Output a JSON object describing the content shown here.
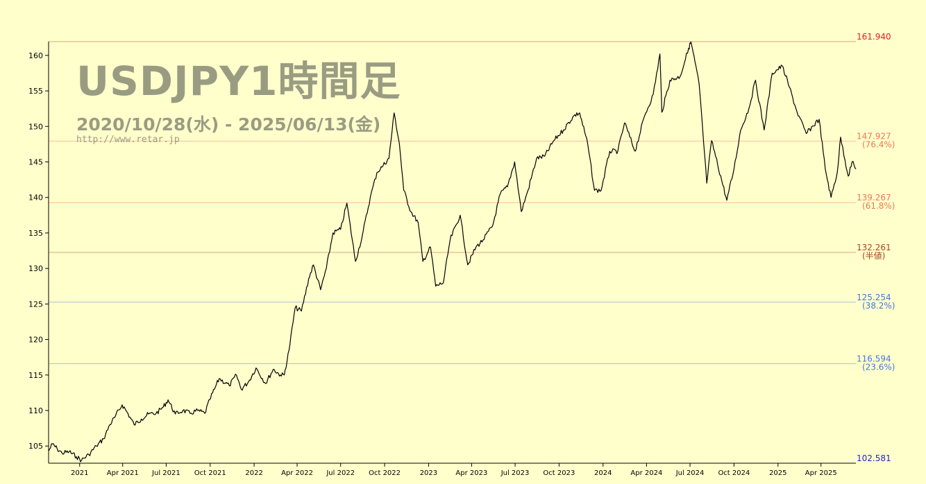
{
  "chart_data": {
    "type": "line",
    "title": "USDJPY1時間足",
    "subtitle": "2020/10/28(水) - 2025/06/13(金)",
    "watermark": "http://www.retar.jp",
    "ylim": [
      102.581,
      161.94
    ],
    "y_ticks": [
      105,
      110,
      115,
      120,
      125,
      130,
      135,
      140,
      145,
      150,
      155,
      160
    ],
    "x_tick_labels": [
      "2021",
      "Apr 2021",
      "Jul 2021",
      "Oct 2021",
      "2022",
      "Apr 2022",
      "Jul 2022",
      "Oct 2022",
      "2023",
      "Apr 2023",
      "Jul 2023",
      "Oct 2023",
      "2024",
      "Apr 2024",
      "Jul 2024",
      "Oct 2024",
      "2025",
      "Apr 2025"
    ],
    "x_tick_dates": [
      "2021-01-01",
      "2021-04-01",
      "2021-07-01",
      "2021-10-01",
      "2022-01-01",
      "2022-04-01",
      "2022-07-01",
      "2022-10-01",
      "2023-01-01",
      "2023-04-01",
      "2023-07-01",
      "2023-10-01",
      "2024-01-01",
      "2024-04-01",
      "2024-07-01",
      "2024-10-01",
      "2025-01-01",
      "2025-04-01"
    ],
    "x_range": [
      "2020-10-28",
      "2025-06-13"
    ],
    "fib_levels": [
      {
        "price": "161.940",
        "label": "",
        "color": "#e02020"
      },
      {
        "price": "147.927",
        "label": "(76.4%)",
        "color": "#ee7755"
      },
      {
        "price": "139.267",
        "label": "(61.8%)",
        "color": "#ee7755"
      },
      {
        "price": "132.261",
        "label": "(半値)",
        "color": "#aa4422"
      },
      {
        "price": "125.254",
        "label": "(38.2%)",
        "color": "#4477dd"
      },
      {
        "price": "116.594",
        "label": "(23.6%)",
        "color": "#4477dd"
      },
      {
        "price": "102.581",
        "label": "",
        "color": "#2222cc"
      }
    ],
    "series": [
      {
        "values": [
          [
            "2020-10-28",
            104.3
          ],
          [
            "2020-11-05",
            105.3
          ],
          [
            "2020-11-15",
            104.6
          ],
          [
            "2020-11-25",
            104.0
          ],
          [
            "2020-12-10",
            104.2
          ],
          [
            "2020-12-25",
            103.5
          ],
          [
            "2021-01-05",
            103.0
          ],
          [
            "2021-01-20",
            103.8
          ],
          [
            "2021-02-05",
            105.0
          ],
          [
            "2021-02-20",
            106.0
          ],
          [
            "2021-03-05",
            108.0
          ],
          [
            "2021-03-15",
            109.0
          ],
          [
            "2021-03-31",
            110.8
          ],
          [
            "2021-04-10",
            109.8
          ],
          [
            "2021-04-25",
            108.0
          ],
          [
            "2021-05-10",
            108.8
          ],
          [
            "2021-05-25",
            109.5
          ],
          [
            "2021-06-10",
            109.6
          ],
          [
            "2021-06-25",
            110.5
          ],
          [
            "2021-07-05",
            111.5
          ],
          [
            "2021-07-20",
            109.5
          ],
          [
            "2021-08-05",
            110.0
          ],
          [
            "2021-08-20",
            109.6
          ],
          [
            "2021-09-05",
            110.0
          ],
          [
            "2021-09-20",
            109.6
          ],
          [
            "2021-09-30",
            111.5
          ],
          [
            "2021-10-10",
            113.0
          ],
          [
            "2021-10-20",
            114.5
          ],
          [
            "2021-11-10",
            113.5
          ],
          [
            "2021-11-25",
            115.0
          ],
          [
            "2021-12-05",
            113.0
          ],
          [
            "2021-12-20",
            114.0
          ],
          [
            "2022-01-05",
            116.0
          ],
          [
            "2022-01-25",
            113.8
          ],
          [
            "2022-02-10",
            115.8
          ],
          [
            "2022-02-25",
            115.0
          ],
          [
            "2022-03-05",
            115.0
          ],
          [
            "2022-03-15",
            118.5
          ],
          [
            "2022-03-28",
            124.5
          ],
          [
            "2022-04-10",
            124.0
          ],
          [
            "2022-04-25",
            128.5
          ],
          [
            "2022-05-05",
            130.5
          ],
          [
            "2022-05-20",
            127.0
          ],
          [
            "2022-06-01",
            130.0
          ],
          [
            "2022-06-15",
            135.0
          ],
          [
            "2022-07-01",
            135.5
          ],
          [
            "2022-07-14",
            139.2
          ],
          [
            "2022-08-01",
            131.0
          ],
          [
            "2022-08-15",
            134.5
          ],
          [
            "2022-09-01",
            140.0
          ],
          [
            "2022-09-15",
            143.5
          ],
          [
            "2022-09-28",
            144.5
          ],
          [
            "2022-10-10",
            145.5
          ],
          [
            "2022-10-21",
            151.9
          ],
          [
            "2022-11-01",
            147.5
          ],
          [
            "2022-11-10",
            141.0
          ],
          [
            "2022-11-25",
            138.0
          ],
          [
            "2022-12-10",
            136.5
          ],
          [
            "2022-12-20",
            131.0
          ],
          [
            "2023-01-05",
            133.0
          ],
          [
            "2023-01-16",
            127.5
          ],
          [
            "2023-02-01",
            128.0
          ],
          [
            "2023-02-15",
            134.0
          ],
          [
            "2023-03-08",
            137.5
          ],
          [
            "2023-03-24",
            130.5
          ],
          [
            "2023-04-10",
            133.0
          ],
          [
            "2023-04-25",
            134.0
          ],
          [
            "2023-05-15",
            136.0
          ],
          [
            "2023-05-31",
            140.5
          ],
          [
            "2023-06-15",
            141.5
          ],
          [
            "2023-06-30",
            145.0
          ],
          [
            "2023-07-14",
            138.0
          ],
          [
            "2023-07-28",
            141.0
          ],
          [
            "2023-08-15",
            145.5
          ],
          [
            "2023-09-01",
            145.8
          ],
          [
            "2023-09-20",
            148.0
          ],
          [
            "2023-10-10",
            149.5
          ],
          [
            "2023-11-01",
            151.5
          ],
          [
            "2023-11-13",
            151.9
          ],
          [
            "2023-11-30",
            147.5
          ],
          [
            "2023-12-14",
            141.0
          ],
          [
            "2023-12-28",
            141.0
          ],
          [
            "2024-01-15",
            146.5
          ],
          [
            "2024-02-01",
            146.5
          ],
          [
            "2024-02-15",
            150.5
          ],
          [
            "2024-03-08",
            146.5
          ],
          [
            "2024-03-28",
            151.5
          ],
          [
            "2024-04-15",
            154.5
          ],
          [
            "2024-04-29",
            160.2
          ],
          [
            "2024-05-03",
            152.0
          ],
          [
            "2024-05-20",
            156.5
          ],
          [
            "2024-06-10",
            157.0
          ],
          [
            "2024-06-28",
            161.0
          ],
          [
            "2024-07-03",
            161.9
          ],
          [
            "2024-07-20",
            156.0
          ],
          [
            "2024-08-05",
            142.0
          ],
          [
            "2024-08-15",
            148.0
          ],
          [
            "2024-09-16",
            139.6
          ],
          [
            "2024-10-01",
            144.0
          ],
          [
            "2024-10-15",
            149.5
          ],
          [
            "2024-11-01",
            152.5
          ],
          [
            "2024-11-15",
            156.5
          ],
          [
            "2024-12-03",
            149.5
          ],
          [
            "2024-12-20",
            157.5
          ],
          [
            "2025-01-10",
            158.5
          ],
          [
            "2025-01-25",
            155.5
          ],
          [
            "2025-02-10",
            152.0
          ],
          [
            "2025-03-01",
            149.0
          ],
          [
            "2025-03-28",
            151.0
          ],
          [
            "2025-04-10",
            144.0
          ],
          [
            "2025-04-22",
            140.0
          ],
          [
            "2025-05-05",
            143.5
          ],
          [
            "2025-05-12",
            148.5
          ],
          [
            "2025-05-28",
            143.0
          ],
          [
            "2025-06-05",
            145.0
          ],
          [
            "2025-06-13",
            144.0
          ]
        ]
      }
    ]
  }
}
